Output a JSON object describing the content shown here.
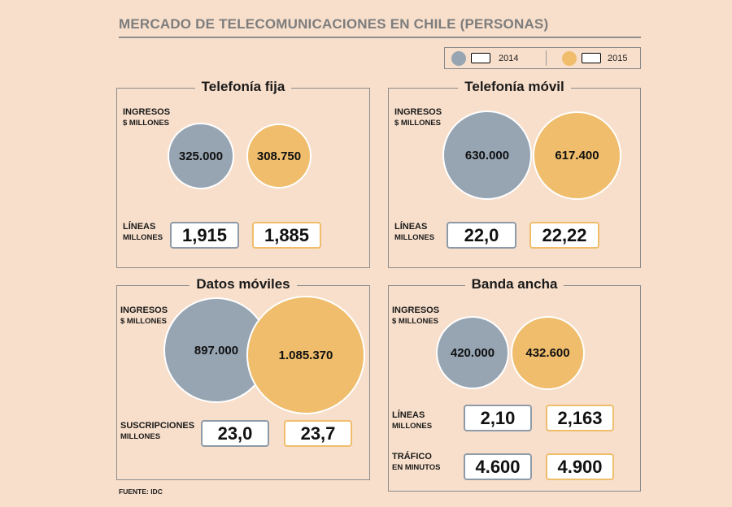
{
  "title": "MERCADO DE TELECOMUNICACIONES EN CHILE (PERSONAS)",
  "legend": {
    "year_2014": "2014",
    "year_2015": "2015"
  },
  "colors": {
    "y2014": "#97a5b3",
    "y2015": "#efbd6b",
    "background": "#f8dfcb"
  },
  "source": "FUENTE: IDC",
  "chart_data": {
    "type": "bubble",
    "series": [
      "2014",
      "2015"
    ],
    "panels": [
      {
        "name": "Telefonía fija",
        "ingresos_label": "INGRESOS",
        "ingresos_unit": "$ MILLONES",
        "ingresos": {
          "2014": "325.000",
          "2015": "308.750"
        },
        "ingresos_values": [
          325000,
          308750
        ],
        "metrics": [
          {
            "label": "LÍNEAS",
            "unit": "MILLONES",
            "v2014": "1,915",
            "v2015": "1,885"
          }
        ]
      },
      {
        "name": "Telefonía móvil",
        "ingresos_label": "INGRESOS",
        "ingresos_unit": "$ MILLONES",
        "ingresos": {
          "2014": "630.000",
          "2015": "617.400"
        },
        "ingresos_values": [
          630000,
          617400
        ],
        "metrics": [
          {
            "label": "LÍNEAS",
            "unit": "MILLONES",
            "v2014": "22,0",
            "v2015": "22,22"
          }
        ]
      },
      {
        "name": "Datos móviles",
        "ingresos_label": "INGRESOS",
        "ingresos_unit": "$ MILLONES",
        "ingresos": {
          "2014": "897.000",
          "2015": "1.085.370"
        },
        "ingresos_values": [
          897000,
          1085370
        ],
        "metrics": [
          {
            "label": "SUSCRIPCIONES",
            "unit": "MILLONES",
            "v2014": "23,0",
            "v2015": "23,7"
          }
        ]
      },
      {
        "name": "Banda ancha",
        "ingresos_label": "INGRESOS",
        "ingresos_unit": "$ MILLONES",
        "ingresos": {
          "2014": "420.000",
          "2015": "432.600"
        },
        "ingresos_values": [
          420000,
          432600
        ],
        "metrics": [
          {
            "label": "LÍNEAS",
            "unit": "MILLONES",
            "v2014": "2,10",
            "v2015": "2,163"
          },
          {
            "label": "TRÁFICO",
            "unit": "EN MINUTOS",
            "v2014": "4.600",
            "v2015": "4.900"
          }
        ]
      }
    ]
  }
}
